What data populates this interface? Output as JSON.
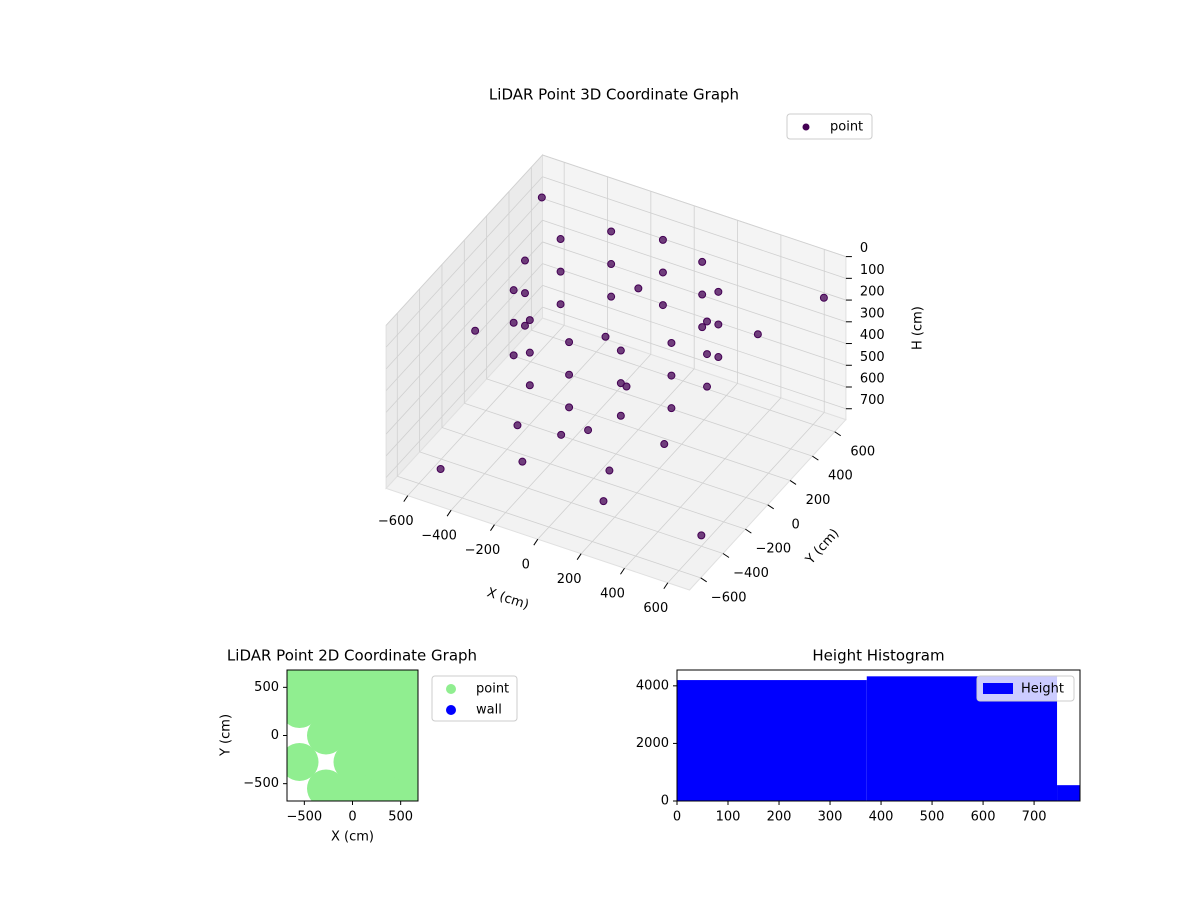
{
  "chart_data": [
    {
      "type": "scatter3d",
      "title": "LiDAR Point 3D Coordinate Graph",
      "xlabel": "X (cm)",
      "ylabel": "Y (cm)",
      "zlabel": "H (cm)",
      "xlim": [
        -700,
        700
      ],
      "ylim": [
        -700,
        700
      ],
      "zlim": [
        0,
        750
      ],
      "zinverted": true,
      "xticks": [
        {
          "value": -600,
          "label": "−600"
        },
        {
          "value": -400,
          "label": "−400"
        },
        {
          "value": -200,
          "label": "−200"
        },
        0,
        200,
        400,
        600
      ],
      "yticks": [
        {
          "value": -600,
          "label": "−600"
        },
        {
          "value": -400,
          "label": "−400"
        },
        {
          "value": -200,
          "label": "−200"
        },
        0,
        200,
        400,
        600
      ],
      "zticks": [
        0,
        100,
        200,
        300,
        400,
        500,
        600,
        700
      ],
      "grid": true,
      "legend": "upper right",
      "series": [
        {
          "name": "point",
          "color": "#440154",
          "x": [
            420,
            364,
            210,
            0,
            -210,
            -364,
            -420,
            -364,
            -210,
            0,
            210,
            364,
            420,
            364,
            210,
            0,
            -210,
            -364,
            -420,
            -364,
            -210,
            0,
            210,
            364,
            420,
            364,
            210,
            0,
            -210,
            -364,
            -420,
            -364,
            -210,
            0,
            210,
            364,
            -300,
            -150,
            0,
            150,
            300,
            -100,
            100,
            -200,
            200,
            0,
            -600,
            600,
            -500,
            500,
            -650,
            650
          ],
          "y": [
            0,
            210,
            364,
            420,
            364,
            210,
            0,
            -210,
            -364,
            -420,
            -364,
            -210,
            0,
            210,
            364,
            420,
            364,
            210,
            0,
            -210,
            -364,
            -420,
            -364,
            -210,
            0,
            210,
            364,
            420,
            364,
            210,
            0,
            -210,
            -364,
            -420,
            -364,
            -210,
            -300,
            -200,
            -250,
            -350,
            -150,
            100,
            -100,
            -450,
            -500,
            200,
            500,
            -400,
            -600,
            300,
            0,
            600
          ],
          "z": [
            0,
            0,
            0,
            0,
            0,
            0,
            0,
            0,
            0,
            0,
            0,
            0,
            150,
            150,
            150,
            150,
            150,
            150,
            150,
            150,
            150,
            150,
            150,
            150,
            300,
            300,
            300,
            300,
            300,
            300,
            300,
            300,
            300,
            300,
            300,
            300,
            550,
            600,
            500,
            580,
            520,
            300,
            350,
            600,
            620,
            100,
            50,
            700,
            650,
            200,
            400,
            150
          ]
        }
      ]
    },
    {
      "type": "scatter",
      "title": "LiDAR Point 2D Coordinate Graph",
      "xlabel": "X (cm)",
      "ylabel": "Y (cm)",
      "xlim": [
        -680,
        680
      ],
      "ylim": [
        -680,
        680
      ],
      "xticks": [
        {
          "value": -500,
          "label": "−500"
        },
        0,
        500
      ],
      "yticks": [
        {
          "value": -500,
          "label": "−500"
        },
        0,
        500
      ],
      "legend": "outside right",
      "series": [
        {
          "name": "point",
          "color": "#90ee90",
          "x": [
            -550,
            -550,
            -275,
            -275,
            -275,
            -275,
            0,
            0,
            0,
            0,
            0,
            275,
            275,
            275,
            275,
            275,
            550,
            550,
            550,
            550,
            550,
            -550
          ],
          "y": [
            275,
            550,
            -550,
            0,
            275,
            550,
            -550,
            -275,
            0,
            275,
            550,
            -550,
            -275,
            0,
            275,
            550,
            -550,
            -275,
            0,
            275,
            550,
            -275
          ]
        },
        {
          "name": "wall",
          "color": "#0000ff",
          "x": [],
          "y": []
        }
      ]
    },
    {
      "type": "hist",
      "title": "Height Histogram",
      "xlim": [
        0,
        790
      ],
      "ylim": [
        0,
        4550
      ],
      "xticks": [
        0,
        100,
        200,
        300,
        400,
        500,
        600,
        700
      ],
      "yticks": [
        0,
        2000,
        4000
      ],
      "legend": "upper right",
      "series": [
        {
          "name": "Height",
          "color": "#0000ff",
          "bins": [
            0,
            372,
            745,
            790
          ],
          "values": [
            4200,
            4330,
            550
          ]
        }
      ]
    }
  ]
}
